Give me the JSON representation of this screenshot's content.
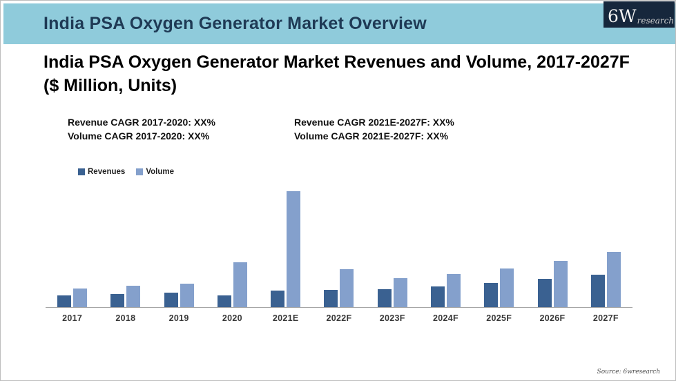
{
  "header": {
    "title": "India PSA Oxygen Generator Market Overview",
    "bg_color": "#8fcbdb",
    "text_color": "#1f3a55",
    "logo": {
      "main": "6W",
      "sub": "research",
      "bg_color": "#16273c"
    }
  },
  "chart": {
    "title_line1": "India PSA Oxygen Generator Market Revenues and Volume, 2017-2027F",
    "title_line2": "($ Million, Units)",
    "cagr_left_line1": "Revenue CAGR 2017-2020: XX%",
    "cagr_left_line2": "Volume CAGR 2017-2020: XX%",
    "cagr_right_line1": "Revenue CAGR 2021E-2027F: XX%",
    "cagr_right_line2": "Volume CAGR 2021E-2027F: XX%"
  },
  "chart_data": {
    "type": "bar",
    "title": "India PSA Oxygen Generator Market Revenues and Volume, 2017-2027F ($ Million, Units)",
    "categories": [
      "2017",
      "2018",
      "2019",
      "2020",
      "2021E",
      "2022F",
      "2023F",
      "2024F",
      "2025F",
      "2026F",
      "2027F"
    ],
    "series": [
      {
        "name": "Revenues",
        "color": "#3a6191",
        "values": [
          17,
          19,
          21,
          17,
          24,
          25,
          26,
          30,
          35,
          41,
          47
        ]
      },
      {
        "name": "Volume",
        "color": "#84a0cc",
        "values": [
          27,
          31,
          34,
          65,
          168,
          55,
          42,
          48,
          56,
          67,
          80
        ]
      }
    ],
    "xlabel": "",
    "ylabel": "",
    "ylim": [
      0,
      175
    ],
    "units": "relative units (y-axis unlabeled; actual figures masked as XX% in source slide)",
    "grid": false,
    "legend_position": "top-left",
    "axis_line_color": "#a6a6a6"
  },
  "footer": {
    "source": "Source: 6wresearch"
  }
}
